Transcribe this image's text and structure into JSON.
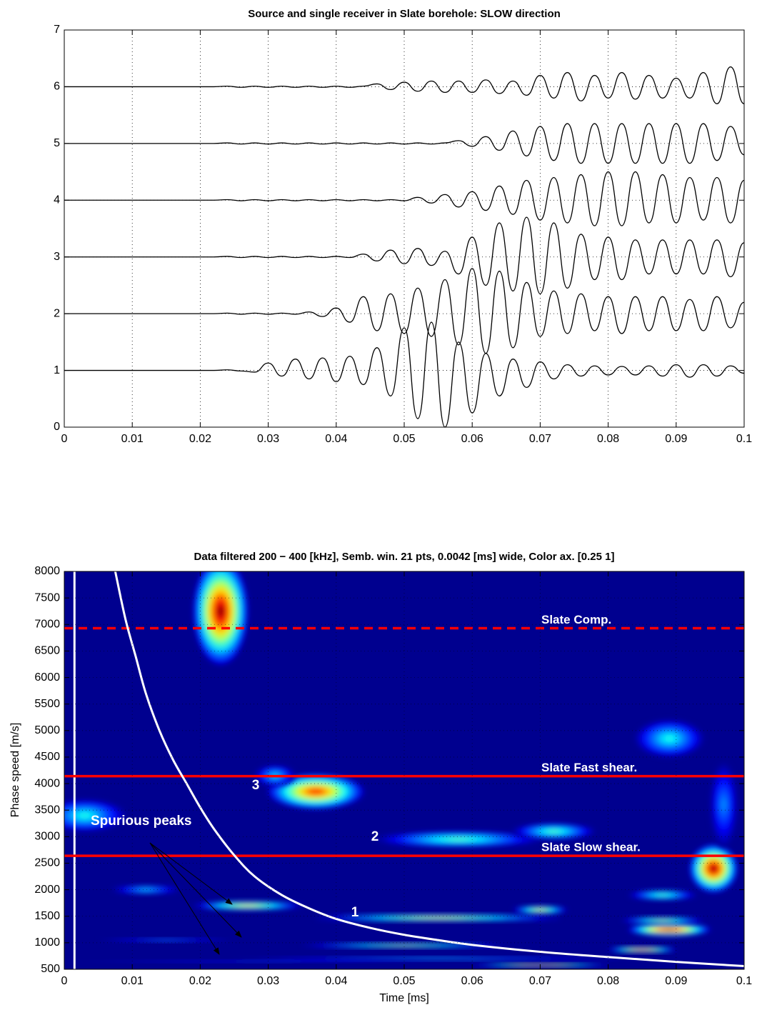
{
  "chart_data": [
    {
      "type": "line",
      "title": "Source and single receiver in Slate borehole: SLOW direction",
      "x": [
        0,
        0.02,
        0.022,
        0.024,
        0.026,
        0.028,
        0.03,
        0.032,
        0.034,
        0.036,
        0.038,
        0.04,
        0.042,
        0.044,
        0.046,
        0.048,
        0.05,
        0.052,
        0.054,
        0.056,
        0.058,
        0.06,
        0.062,
        0.064,
        0.066,
        0.068,
        0.07,
        0.072,
        0.074,
        0.076,
        0.078,
        0.08,
        0.082,
        0.084,
        0.086,
        0.088,
        0.09,
        0.092,
        0.094,
        0.096,
        0.098,
        0.1
      ],
      "color": "#000000",
      "series": [
        {
          "values": [
            1,
            1,
            1.0,
            1.01,
            0.99,
            0.97,
            1.13,
            0.9,
            1.2,
            0.85,
            1.22,
            0.8,
            1.25,
            0.75,
            1.4,
            0.55,
            1.75,
            0.15,
            1.85,
            0.0,
            1.5,
            0.25,
            1.3,
            0.55,
            1.2,
            0.7,
            1.15,
            0.85,
            1.1,
            0.9,
            1.08,
            0.92,
            1.07,
            0.92,
            1.08,
            0.9,
            1.1,
            0.88,
            1.1,
            0.9,
            1.08,
            0.95
          ]
        },
        {
          "values": [
            2,
            2,
            2,
            2.01,
            1.99,
            2.01,
            1.99,
            2.01,
            1.99,
            2.03,
            1.95,
            2.1,
            1.85,
            2.3,
            1.7,
            2.35,
            1.65,
            2.45,
            1.6,
            2.6,
            1.45,
            2.8,
            1.3,
            2.75,
            1.4,
            2.55,
            1.6,
            2.4,
            1.65,
            2.35,
            1.7,
            2.3,
            1.65,
            2.3,
            1.7,
            2.3,
            1.7,
            2.25,
            1.7,
            2.3,
            1.75,
            2.2
          ]
        },
        {
          "values": [
            3,
            3,
            3,
            3.01,
            2.99,
            3.01,
            2.99,
            3.01,
            2.99,
            3.01,
            2.99,
            3.01,
            2.99,
            3.05,
            2.93,
            3.12,
            2.88,
            3.15,
            2.85,
            3.1,
            2.7,
            3.35,
            2.5,
            3.6,
            2.4,
            3.7,
            2.35,
            3.6,
            2.45,
            3.4,
            2.6,
            3.35,
            2.6,
            3.3,
            2.7,
            3.3,
            2.7,
            3.3,
            2.7,
            3.3,
            2.65,
            3.25
          ]
        },
        {
          "values": [
            4,
            4,
            4,
            4.01,
            3.99,
            4.01,
            3.99,
            4.01,
            3.99,
            4.01,
            3.99,
            4.01,
            3.99,
            4.01,
            3.99,
            4.01,
            3.99,
            4.05,
            3.95,
            4.1,
            3.88,
            4.15,
            3.82,
            4.25,
            3.75,
            4.35,
            3.65,
            4.4,
            3.6,
            4.45,
            3.55,
            4.5,
            3.55,
            4.5,
            3.6,
            4.45,
            3.6,
            4.4,
            3.65,
            4.4,
            3.6,
            4.35
          ]
        },
        {
          "values": [
            5,
            5,
            5,
            5.01,
            4.99,
            5.01,
            4.99,
            5.01,
            4.99,
            5.01,
            4.99,
            5.01,
            4.99,
            5.01,
            4.99,
            5.01,
            4.99,
            5.01,
            4.99,
            5.01,
            5.05,
            4.95,
            5.12,
            4.88,
            5.22,
            4.78,
            5.3,
            4.7,
            5.35,
            4.65,
            5.35,
            4.65,
            5.35,
            4.65,
            5.35,
            4.65,
            5.35,
            4.65,
            5.35,
            4.7,
            5.3,
            4.8
          ]
        },
        {
          "values": [
            6,
            6,
            6,
            6.01,
            5.99,
            6.01,
            5.99,
            6.01,
            5.99,
            6.01,
            5.99,
            6.01,
            5.99,
            6.01,
            6.05,
            5.95,
            6.08,
            5.92,
            6.1,
            5.9,
            6.1,
            5.9,
            6.12,
            5.88,
            6.1,
            5.85,
            6.2,
            5.8,
            6.25,
            5.75,
            6.2,
            5.8,
            6.25,
            5.78,
            6.2,
            5.8,
            6.15,
            5.8,
            6.25,
            5.7,
            6.35,
            5.7
          ]
        }
      ],
      "xlim": [
        0,
        0.1
      ],
      "xticks": [
        0,
        0.01,
        0.02,
        0.03,
        0.04,
        0.05,
        0.06,
        0.07,
        0.08,
        0.09,
        0.1
      ],
      "ylim": [
        0,
        7
      ],
      "yticks": [
        0,
        1,
        2,
        3,
        4,
        5,
        6,
        7
      ],
      "grid": true
    },
    {
      "type": "heatmap",
      "title": "Data filtered 200 − 400 [kHz],  Semb. win. 21 pts, 0.0042 [ms] wide, Color ax. [0.25          1]",
      "x_label": "Time [ms]",
      "y_label": "Phase speed [m/s]",
      "xlim": [
        0,
        0.1
      ],
      "xticks": [
        0,
        0.01,
        0.02,
        0.03,
        0.04,
        0.05,
        0.06,
        0.07,
        0.08,
        0.09,
        0.1
      ],
      "ylim": [
        500,
        8000
      ],
      "yticks": [
        500,
        1000,
        1500,
        2000,
        2500,
        3000,
        3500,
        4000,
        4500,
        5000,
        5500,
        6000,
        6500,
        7000,
        7500,
        8000
      ],
      "grid": true,
      "clim": [
        0.25,
        1
      ],
      "background": "#00008f",
      "blobs": [
        {
          "x": 0.023,
          "y": 7250,
          "rx": 0.004,
          "ry": 1000,
          "value": 1.0
        },
        {
          "x": 0.037,
          "y": 3850,
          "rx": 0.007,
          "ry": 330,
          "value": 0.9
        },
        {
          "x": 0.031,
          "y": 4150,
          "rx": 0.003,
          "ry": 200,
          "value": 0.5
        },
        {
          "x": 0.003,
          "y": 3400,
          "rx": 0.006,
          "ry": 300,
          "value": 0.55
        },
        {
          "x": 0.058,
          "y": 2950,
          "rx": 0.012,
          "ry": 150,
          "value": 0.6
        },
        {
          "x": 0.072,
          "y": 3100,
          "rx": 0.006,
          "ry": 150,
          "value": 0.6
        },
        {
          "x": 0.089,
          "y": 4850,
          "rx": 0.005,
          "ry": 350,
          "value": 0.55
        },
        {
          "x": 0.0955,
          "y": 2400,
          "rx": 0.0035,
          "ry": 450,
          "value": 1.0
        },
        {
          "x": 0.097,
          "y": 3600,
          "rx": 0.002,
          "ry": 800,
          "value": 0.45
        },
        {
          "x": 0.027,
          "y": 1700,
          "rx": 0.008,
          "ry": 80,
          "value": 0.75
        },
        {
          "x": 0.055,
          "y": 1470,
          "rx": 0.018,
          "ry": 60,
          "value": 0.75
        },
        {
          "x": 0.07,
          "y": 1620,
          "rx": 0.004,
          "ry": 70,
          "value": 0.75
        },
        {
          "x": 0.088,
          "y": 1900,
          "rx": 0.005,
          "ry": 90,
          "value": 0.6
        },
        {
          "x": 0.089,
          "y": 1250,
          "rx": 0.006,
          "ry": 120,
          "value": 1.0
        },
        {
          "x": 0.088,
          "y": 1420,
          "rx": 0.006,
          "ry": 60,
          "value": 0.7
        },
        {
          "x": 0.05,
          "y": 950,
          "rx": 0.015,
          "ry": 40,
          "value": 0.7
        },
        {
          "x": 0.085,
          "y": 870,
          "rx": 0.005,
          "ry": 50,
          "value": 0.9
        },
        {
          "x": 0.055,
          "y": 700,
          "rx": 0.03,
          "ry": 30,
          "value": 0.5
        },
        {
          "x": 0.07,
          "y": 580,
          "rx": 0.01,
          "ry": 30,
          "value": 0.9
        },
        {
          "x": 0.012,
          "y": 2000,
          "rx": 0.005,
          "ry": 80,
          "value": 0.5
        },
        {
          "x": 0.015,
          "y": 1050,
          "rx": 0.01,
          "ry": 30,
          "value": 0.45
        },
        {
          "x": 0.03,
          "y": 650,
          "rx": 0.03,
          "ry": 20,
          "value": 0.4
        }
      ],
      "hlines": [
        {
          "y": 6930,
          "label": "Slate Comp.",
          "color": "#ff0000",
          "linestyle": "dashed"
        },
        {
          "y": 4140,
          "label": "Slate Fast shear.",
          "color": "#ff0000",
          "linestyle": "solid"
        },
        {
          "y": 2640,
          "label": "Slate Slow shear.",
          "color": "#ff0000",
          "linestyle": "solid"
        }
      ],
      "vline": {
        "x": 0.0015,
        "color": "#ffffff"
      },
      "curve": {
        "color": "#ffffff",
        "x": [
          0.0075,
          0.009,
          0.0105,
          0.012,
          0.014,
          0.016,
          0.018,
          0.02,
          0.022,
          0.025,
          0.028,
          0.032,
          0.036,
          0.04,
          0.045,
          0.05,
          0.055,
          0.06,
          0.07,
          0.08,
          0.09,
          0.1
        ],
        "y": [
          8000,
          7100,
          6400,
          5700,
          5000,
          4450,
          4000,
          3550,
          3150,
          2650,
          2250,
          1900,
          1650,
          1450,
          1280,
          1150,
          1050,
          960,
          830,
          730,
          640,
          560
        ]
      },
      "annotations": [
        "Spurious peaks",
        "1",
        "2",
        "3"
      ]
    }
  ]
}
